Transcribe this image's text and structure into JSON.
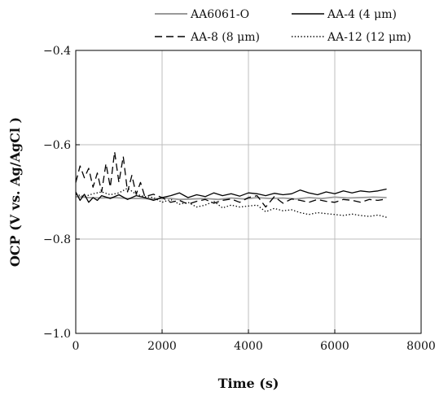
{
  "chart_data": {
    "type": "line",
    "title": "",
    "xlabel": "Time (s)",
    "ylabel": "OCP (V vs. Ag/AgCl )",
    "xlim": [
      0,
      8000
    ],
    "ylim": [
      -1.0,
      -0.4
    ],
    "xticks": [
      0,
      2000,
      4000,
      6000,
      8000
    ],
    "xtick_labels": [
      "0",
      "2000",
      "4000",
      "6000",
      "8000"
    ],
    "yticks": [
      -1.0,
      -0.8,
      -0.6,
      -0.4
    ],
    "ytick_labels": [
      "−1.0",
      "−0.8",
      "−0.6",
      "−0.4"
    ],
    "grid": true,
    "legend_position": "top",
    "series": [
      {
        "name": "AA6061-O",
        "style": "solid",
        "color": "#999999",
        "x": [
          0,
          300,
          600,
          900,
          1200,
          1500,
          1800,
          2100,
          2400,
          2700,
          3000,
          3300,
          3600,
          3900,
          4200,
          4500,
          4800,
          5100,
          5400,
          5700,
          6000,
          6300,
          6600,
          6900,
          7200
        ],
        "y": [
          -0.71,
          -0.712,
          -0.713,
          -0.712,
          -0.714,
          -0.714,
          -0.715,
          -0.713,
          -0.716,
          -0.715,
          -0.714,
          -0.716,
          -0.713,
          -0.715,
          -0.712,
          -0.714,
          -0.713,
          -0.715,
          -0.712,
          -0.714,
          -0.711,
          -0.713,
          -0.712,
          -0.711,
          -0.712
        ]
      },
      {
        "name": "AA-4 (4 μm)",
        "style": "solid",
        "color": "#000000",
        "x": [
          0,
          100,
          200,
          300,
          400,
          500,
          600,
          800,
          1000,
          1200,
          1400,
          1600,
          1800,
          2000,
          2200,
          2400,
          2600,
          2800,
          3000,
          3200,
          3400,
          3600,
          3800,
          4000,
          4200,
          4400,
          4600,
          4800,
          5000,
          5200,
          5400,
          5600,
          5800,
          6000,
          6200,
          6400,
          6600,
          6800,
          7000,
          7200
        ],
        "y": [
          -0.7,
          -0.718,
          -0.705,
          -0.722,
          -0.712,
          -0.718,
          -0.708,
          -0.714,
          -0.706,
          -0.716,
          -0.708,
          -0.712,
          -0.718,
          -0.712,
          -0.708,
          -0.702,
          -0.712,
          -0.706,
          -0.71,
          -0.702,
          -0.708,
          -0.704,
          -0.709,
          -0.702,
          -0.704,
          -0.708,
          -0.703,
          -0.706,
          -0.704,
          -0.696,
          -0.702,
          -0.706,
          -0.7,
          -0.704,
          -0.698,
          -0.702,
          -0.698,
          -0.7,
          -0.698,
          -0.694
        ]
      },
      {
        "name": "AA-8 (8 μm)",
        "style": "dashed",
        "color": "#000000",
        "x": [
          0,
          100,
          200,
          300,
          400,
          500,
          600,
          700,
          800,
          900,
          1000,
          1100,
          1200,
          1300,
          1400,
          1500,
          1600,
          1800,
          2000,
          2200,
          2400,
          2600,
          2800,
          3000,
          3200,
          3400,
          3600,
          3800,
          4000,
          4200,
          4400,
          4600,
          4800,
          5000,
          5200,
          5400,
          5600,
          5800,
          6000,
          6200,
          6400,
          6600,
          6800,
          7000,
          7200
        ],
        "y": [
          -0.68,
          -0.645,
          -0.67,
          -0.65,
          -0.69,
          -0.66,
          -0.7,
          -0.64,
          -0.69,
          -0.615,
          -0.68,
          -0.625,
          -0.7,
          -0.665,
          -0.705,
          -0.68,
          -0.71,
          -0.705,
          -0.712,
          -0.722,
          -0.718,
          -0.726,
          -0.72,
          -0.716,
          -0.724,
          -0.718,
          -0.715,
          -0.722,
          -0.712,
          -0.708,
          -0.732,
          -0.71,
          -0.724,
          -0.715,
          -0.718,
          -0.722,
          -0.716,
          -0.72,
          -0.722,
          -0.716,
          -0.718,
          -0.722,
          -0.716,
          -0.718,
          -0.715
        ]
      },
      {
        "name": "AA-12 (12 μm)",
        "style": "dotted",
        "color": "#000000",
        "x": [
          0,
          200,
          400,
          600,
          800,
          1000,
          1200,
          1400,
          1600,
          1800,
          2000,
          2200,
          2400,
          2600,
          2800,
          3000,
          3200,
          3400,
          3600,
          3800,
          4000,
          4200,
          4400,
          4600,
          4800,
          5000,
          5200,
          5400,
          5600,
          5800,
          6000,
          6200,
          6400,
          6600,
          6800,
          7000,
          7200
        ],
        "y": [
          -0.705,
          -0.71,
          -0.704,
          -0.7,
          -0.706,
          -0.702,
          -0.692,
          -0.705,
          -0.71,
          -0.712,
          -0.722,
          -0.716,
          -0.726,
          -0.722,
          -0.732,
          -0.728,
          -0.72,
          -0.734,
          -0.728,
          -0.732,
          -0.73,
          -0.728,
          -0.742,
          -0.735,
          -0.74,
          -0.738,
          -0.744,
          -0.748,
          -0.744,
          -0.746,
          -0.748,
          -0.75,
          -0.747,
          -0.75,
          -0.752,
          -0.749,
          -0.754
        ]
      }
    ]
  }
}
